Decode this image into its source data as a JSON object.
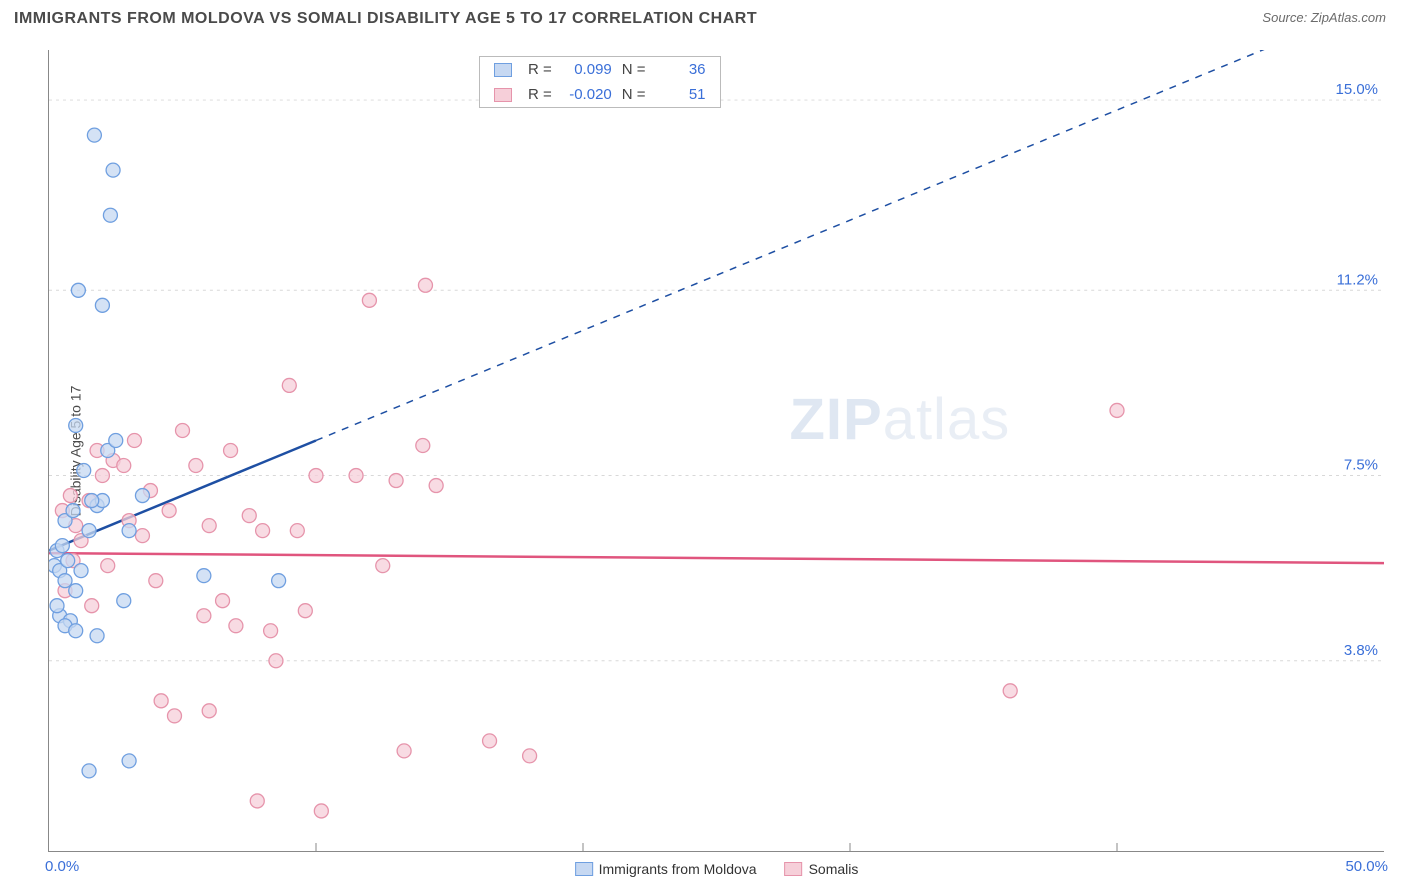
{
  "header": {
    "title": "IMMIGRANTS FROM MOLDOVA VS SOMALI DISABILITY AGE 5 TO 17 CORRELATION CHART",
    "source_label": "Source:",
    "source_name": "ZipAtlas.com"
  },
  "axes": {
    "y_label": "Disability Age 5 to 17",
    "x_min_label": "0.0%",
    "x_max_label": "50.0%",
    "x_min": 0,
    "x_max": 50,
    "y_min": 0,
    "y_max": 16,
    "y_ticks": [
      {
        "v": 3.8,
        "label": "3.8%"
      },
      {
        "v": 7.5,
        "label": "7.5%"
      },
      {
        "v": 11.2,
        "label": "11.2%"
      },
      {
        "v": 15.0,
        "label": "15.0%"
      }
    ],
    "x_ticks_minor": [
      10,
      20,
      30,
      40
    ],
    "grid_color": "#d8d8d8",
    "tick_color": "#3a6fd8",
    "axis_color": "#888888"
  },
  "watermark": {
    "bold": "ZIP",
    "rest": "atlas"
  },
  "legend_stats": {
    "series": [
      {
        "r_label": "R =",
        "r": "0.099",
        "n_label": "N =",
        "n": "36",
        "fill": "#c6d8f2",
        "stroke": "#6f9fe0"
      },
      {
        "r_label": "R =",
        "r": "-0.020",
        "n_label": "N =",
        "n": "51",
        "fill": "#f6cfd9",
        "stroke": "#e694ab"
      }
    ]
  },
  "bottom_legend": {
    "items": [
      {
        "label": "Immigrants from Moldova",
        "fill": "#c6d8f2",
        "stroke": "#6f9fe0"
      },
      {
        "label": "Somalis",
        "fill": "#f6cfd9",
        "stroke": "#e694ab"
      }
    ]
  },
  "series": {
    "moldova": {
      "fill": "#c6d8f2",
      "stroke": "#6f9fe0",
      "opacity": 0.75,
      "marker_r": 7,
      "line_color": "#1e4fa3",
      "line_width": 2.5,
      "line_solid_xmax": 10,
      "reg_y_at_x0": 6.0,
      "reg_y_at_x50": 17.0,
      "points": [
        [
          0.2,
          5.7
        ],
        [
          0.3,
          6.0
        ],
        [
          0.4,
          5.6
        ],
        [
          0.5,
          6.1
        ],
        [
          0.6,
          5.4
        ],
        [
          0.7,
          5.8
        ],
        [
          0.4,
          4.7
        ],
        [
          0.8,
          4.6
        ],
        [
          0.3,
          4.9
        ],
        [
          0.6,
          4.5
        ],
        [
          1.0,
          5.2
        ],
        [
          1.2,
          5.6
        ],
        [
          1.5,
          6.4
        ],
        [
          1.8,
          6.9
        ],
        [
          2.0,
          7.0
        ],
        [
          2.2,
          8.0
        ],
        [
          2.5,
          8.2
        ],
        [
          1.0,
          8.5
        ],
        [
          1.7,
          14.3
        ],
        [
          2.4,
          13.6
        ],
        [
          2.3,
          12.7
        ],
        [
          1.1,
          11.2
        ],
        [
          2.0,
          10.9
        ],
        [
          0.6,
          6.6
        ],
        [
          0.9,
          6.8
        ],
        [
          1.3,
          7.6
        ],
        [
          1.6,
          7.0
        ],
        [
          1.0,
          4.4
        ],
        [
          5.8,
          5.5
        ],
        [
          8.6,
          5.4
        ],
        [
          3.0,
          6.4
        ],
        [
          3.5,
          7.1
        ],
        [
          1.5,
          1.6
        ],
        [
          3.0,
          1.8
        ],
        [
          1.8,
          4.3
        ],
        [
          2.8,
          5.0
        ]
      ]
    },
    "somali": {
      "fill": "#f6cfd9",
      "stroke": "#e694ab",
      "opacity": 0.75,
      "marker_r": 7,
      "line_color": "#e0557e",
      "line_width": 2.5,
      "reg_y_at_x0": 5.95,
      "reg_y_at_x50": 5.75,
      "points": [
        [
          0.5,
          6.8
        ],
        [
          0.8,
          7.1
        ],
        [
          1.0,
          6.5
        ],
        [
          1.5,
          7.0
        ],
        [
          2.0,
          7.5
        ],
        [
          2.4,
          7.8
        ],
        [
          3.0,
          6.6
        ],
        [
          3.5,
          6.3
        ],
        [
          4.0,
          5.4
        ],
        [
          4.5,
          6.8
        ],
        [
          5.0,
          8.4
        ],
        [
          5.5,
          7.7
        ],
        [
          6.0,
          6.5
        ],
        [
          6.5,
          5.0
        ],
        [
          7.0,
          4.5
        ],
        [
          7.5,
          6.7
        ],
        [
          8.0,
          6.4
        ],
        [
          8.3,
          4.4
        ],
        [
          9.0,
          9.3
        ],
        [
          9.3,
          6.4
        ],
        [
          10.0,
          7.5
        ],
        [
          10.2,
          0.8
        ],
        [
          8.5,
          3.8
        ],
        [
          7.8,
          1.0
        ],
        [
          11.5,
          7.5
        ],
        [
          12.0,
          11.0
        ],
        [
          12.5,
          5.7
        ],
        [
          13.0,
          7.4
        ],
        [
          13.3,
          2.0
        ],
        [
          14.0,
          8.1
        ],
        [
          14.1,
          11.3
        ],
        [
          14.5,
          7.3
        ],
        [
          6.0,
          2.8
        ],
        [
          4.7,
          2.7
        ],
        [
          3.2,
          8.2
        ],
        [
          2.8,
          7.7
        ],
        [
          1.8,
          8.0
        ],
        [
          1.2,
          6.2
        ],
        [
          0.9,
          5.8
        ],
        [
          0.6,
          5.2
        ],
        [
          18.0,
          1.9
        ],
        [
          16.5,
          2.2
        ],
        [
          5.8,
          4.7
        ],
        [
          9.6,
          4.8
        ],
        [
          6.8,
          8.0
        ],
        [
          36.0,
          3.2
        ],
        [
          40.0,
          8.8
        ],
        [
          4.2,
          3.0
        ],
        [
          3.8,
          7.2
        ],
        [
          2.2,
          5.7
        ],
        [
          1.6,
          4.9
        ]
      ]
    }
  }
}
